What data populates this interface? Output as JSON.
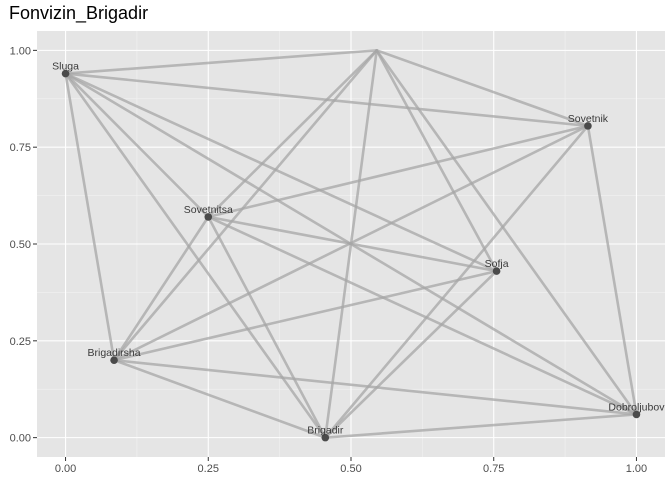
{
  "chart_data": {
    "type": "scatter",
    "title": "Fonvizin_Brigadir",
    "xlabel": "",
    "ylabel": "",
    "xlim": [
      -0.05,
      1.05
    ],
    "ylim": [
      -0.05,
      1.05
    ],
    "x_ticks": [
      "0.00",
      "0.25",
      "0.50",
      "0.75",
      "1.00"
    ],
    "y_ticks": [
      "0.00",
      "0.25",
      "0.50",
      "0.75",
      "1.00"
    ],
    "grid": true,
    "nodes": [
      {
        "name": "Sluga",
        "x": 0.0,
        "y": 0.94
      },
      {
        "name": "",
        "x": 0.545,
        "y": 1.0
      },
      {
        "name": "Sovetnik",
        "x": 0.915,
        "y": 0.805
      },
      {
        "name": "Sovetnitsa",
        "x": 0.25,
        "y": 0.57
      },
      {
        "name": "Sofja",
        "x": 0.755,
        "y": 0.43
      },
      {
        "name": "Brigadirsha",
        "x": 0.085,
        "y": 0.2
      },
      {
        "name": "Brigadir",
        "x": 0.455,
        "y": 0.0
      },
      {
        "name": "Dobroljubov",
        "x": 1.0,
        "y": 0.06
      }
    ],
    "edges": [
      [
        "Sluga",
        1
      ],
      [
        "Sluga",
        "Sovetnik"
      ],
      [
        "Sluga",
        "Sovetnitsa"
      ],
      [
        "Sluga",
        "Sofja"
      ],
      [
        "Sluga",
        "Brigadirsha"
      ],
      [
        "Sluga",
        "Brigadir"
      ],
      [
        "Sluga",
        "Dobroljubov"
      ],
      [
        1,
        "Sovetnik"
      ],
      [
        1,
        "Sovetnitsa"
      ],
      [
        1,
        "Sofja"
      ],
      [
        1,
        "Brigadirsha"
      ],
      [
        1,
        "Brigadir"
      ],
      [
        1,
        "Dobroljubov"
      ],
      [
        "Sovetnik",
        "Sovetnitsa"
      ],
      [
        "Sovetnik",
        "Brigadirsha"
      ],
      [
        "Sovetnik",
        "Brigadir"
      ],
      [
        "Sovetnik",
        "Dobroljubov"
      ],
      [
        "Sovetnitsa",
        "Sofja"
      ],
      [
        "Sovetnitsa",
        "Brigadirsha"
      ],
      [
        "Sovetnitsa",
        "Brigadir"
      ],
      [
        "Sovetnitsa",
        "Dobroljubov"
      ],
      [
        "Sofja",
        "Brigadirsha"
      ],
      [
        "Sofja",
        "Brigadir"
      ],
      [
        "Brigadirsha",
        "Brigadir"
      ],
      [
        "Brigadirsha",
        "Dobroljubov"
      ],
      [
        "Brigadir",
        "Dobroljubov"
      ]
    ]
  }
}
